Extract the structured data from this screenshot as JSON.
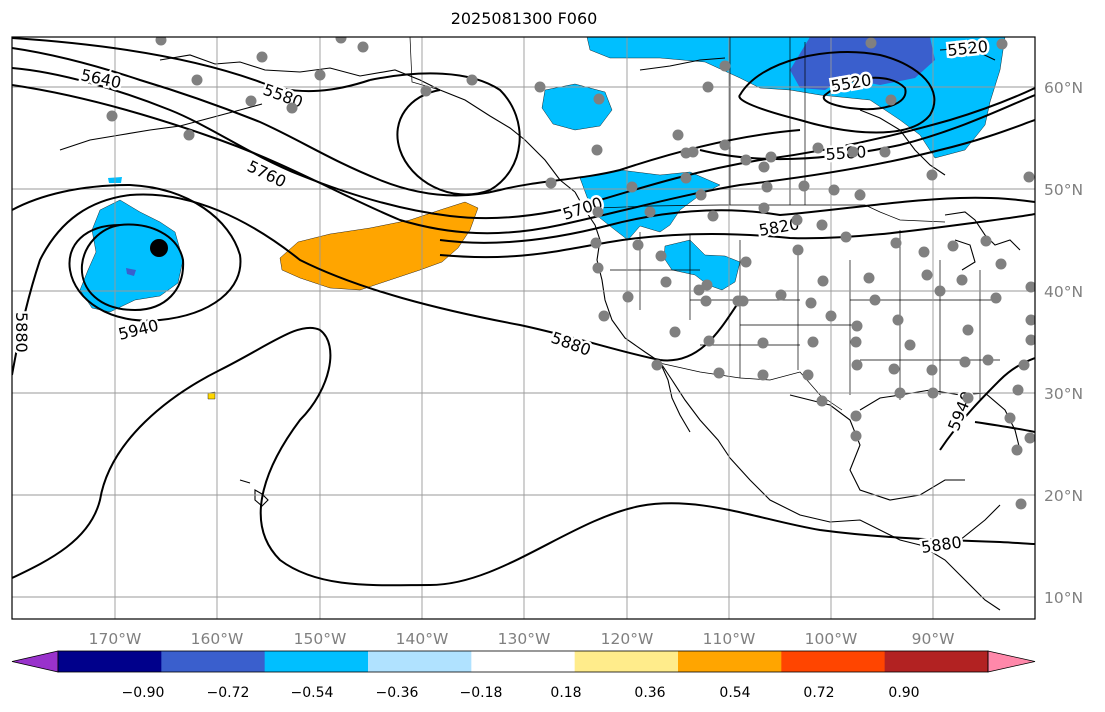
{
  "title": "2025081300 F060",
  "lon_labels": [
    "170°W",
    "160°W",
    "150°W",
    "140°W",
    "130°W",
    "120°W",
    "110°W",
    "100°W",
    "90°W"
  ],
  "lat_labels": [
    "60°N",
    "50°N",
    "40°N",
    "30°N",
    "20°N",
    "10°N"
  ],
  "contour_labels": {
    "c5640": "5640",
    "c5580a": "5580",
    "c5760": "5760",
    "c5940a": "5940",
    "c5880a": "5880",
    "c5880b": "5880",
    "c5700": "5700",
    "c5820": "5820",
    "c5580b": "5580",
    "c5520a": "5520",
    "c5520b": "5520",
    "c5940b": "5940",
    "c5880c": "5880"
  },
  "colorbar": {
    "ticks": [
      "−0.90",
      "−0.72",
      "−0.54",
      "−0.36",
      "−0.18",
      "0.18",
      "0.36",
      "0.54",
      "0.72",
      "0.90"
    ],
    "colors": [
      "#9932cc",
      "#00008b",
      "#3a5fcd",
      "#00bfff",
      "#b0e2ff",
      "#ffffff",
      "#ffec8b",
      "#ffa500",
      "#ff4500",
      "#b22222",
      "#ff88aa"
    ]
  },
  "colors": {
    "contour": "#000000",
    "station": "#808080",
    "negative_fill": "#00bfff",
    "dark_negative_fill": "#3a5fcd",
    "positive_fill": "#ffa500",
    "grid": "#999999"
  },
  "marker_icon": "black-dot-icon"
}
